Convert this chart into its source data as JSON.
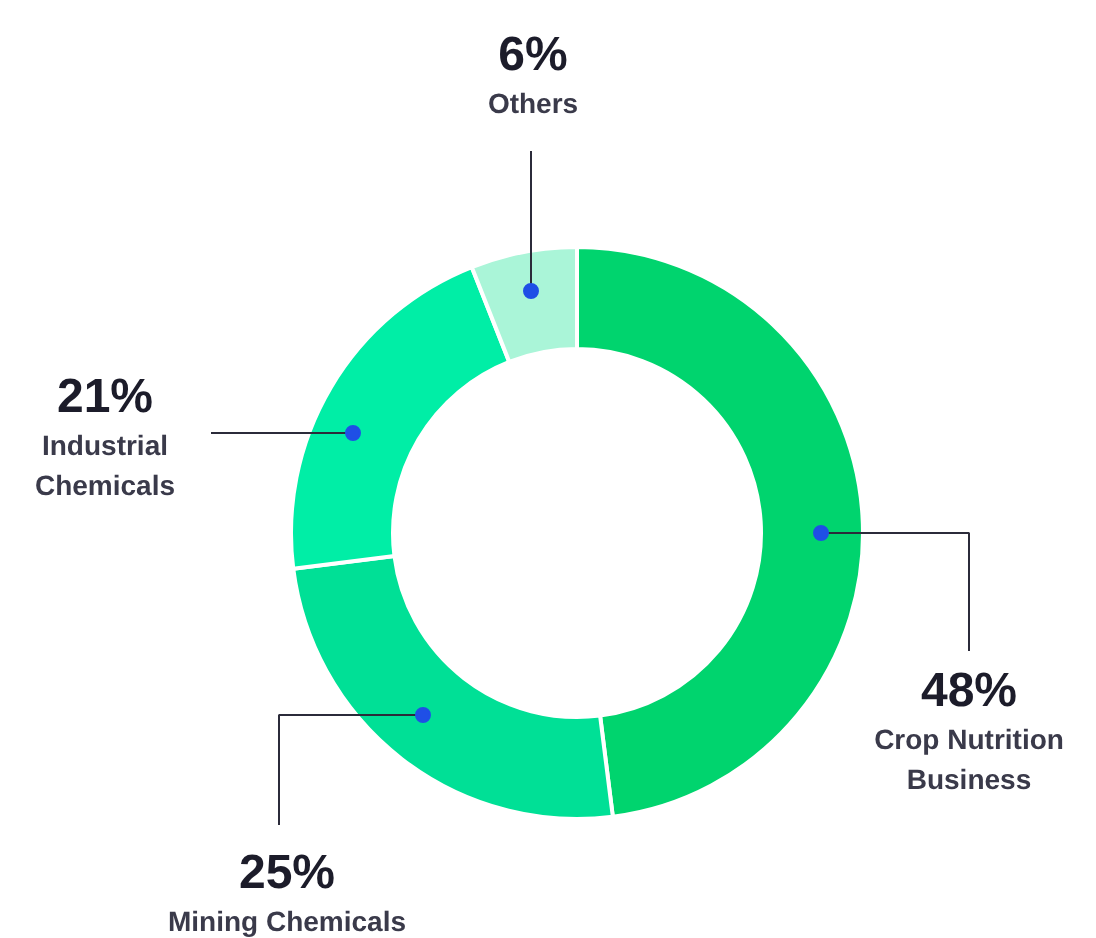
{
  "chart_data": {
    "type": "donut",
    "categories": [
      "Crop Nutrition Business",
      "Mining Chemicals",
      "Industrial Chemicals",
      "Others"
    ],
    "values": [
      48,
      25,
      21,
      6
    ],
    "value_labels": [
      "48%",
      "25%",
      "21%",
      "6%"
    ],
    "colors": [
      "#00d46e",
      "#00e096",
      "#00eea6",
      "#aaf5d8"
    ]
  }
}
